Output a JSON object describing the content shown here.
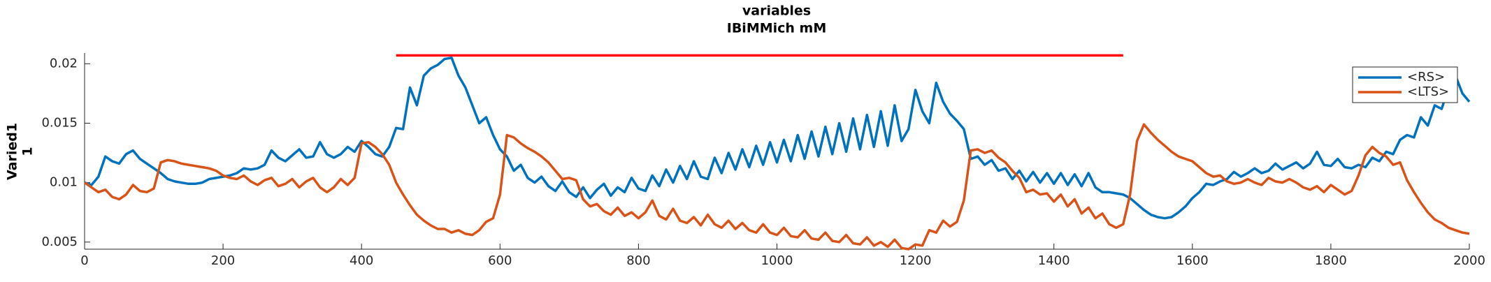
{
  "chart_data": {
    "type": "line",
    "title": "variables",
    "subtitle": "IBiMMich mM",
    "ylabel": [
      "Varied1",
      "1"
    ],
    "xlim": [
      0,
      2000
    ],
    "xticks": [
      0,
      200,
      400,
      600,
      800,
      1000,
      1200,
      1400,
      1600,
      1800,
      2000
    ],
    "ylim": [
      0.0044,
      0.0209
    ],
    "yticks": [
      0.005,
      0.01,
      0.015,
      0.02
    ],
    "grid": false,
    "legend_position": "upper right",
    "red_line": {
      "x": [
        450,
        1500
      ],
      "y": 0.0207,
      "color": "#ff0000"
    },
    "x": [
      0,
      10,
      20,
      30,
      40,
      50,
      60,
      70,
      80,
      90,
      100,
      110,
      120,
      130,
      140,
      150,
      160,
      170,
      180,
      190,
      200,
      210,
      220,
      230,
      240,
      250,
      260,
      270,
      280,
      290,
      300,
      310,
      320,
      330,
      340,
      350,
      360,
      370,
      380,
      390,
      400,
      410,
      420,
      430,
      440,
      450,
      460,
      470,
      480,
      490,
      500,
      510,
      520,
      530,
      540,
      550,
      560,
      570,
      580,
      590,
      600,
      610,
      620,
      630,
      640,
      650,
      660,
      670,
      680,
      690,
      700,
      710,
      720,
      730,
      740,
      750,
      760,
      770,
      780,
      790,
      800,
      810,
      820,
      830,
      840,
      850,
      860,
      870,
      880,
      890,
      900,
      910,
      920,
      930,
      940,
      950,
      960,
      970,
      980,
      990,
      1000,
      1010,
      1020,
      1030,
      1040,
      1050,
      1060,
      1070,
      1080,
      1090,
      1100,
      1110,
      1120,
      1130,
      1140,
      1150,
      1160,
      1170,
      1180,
      1190,
      1200,
      1210,
      1220,
      1230,
      1240,
      1250,
      1260,
      1270,
      1280,
      1290,
      1300,
      1310,
      1320,
      1330,
      1340,
      1350,
      1360,
      1370,
      1380,
      1390,
      1400,
      1410,
      1420,
      1430,
      1440,
      1450,
      1460,
      1470,
      1480,
      1490,
      1500,
      1510,
      1520,
      1530,
      1540,
      1550,
      1560,
      1570,
      1580,
      1590,
      1600,
      1610,
      1620,
      1630,
      1640,
      1650,
      1660,
      1670,
      1680,
      1690,
      1700,
      1710,
      1720,
      1730,
      1740,
      1750,
      1760,
      1770,
      1780,
      1790,
      1800,
      1810,
      1820,
      1830,
      1840,
      1850,
      1860,
      1870,
      1880,
      1890,
      1900,
      1910,
      1920,
      1930,
      1940,
      1950,
      1960,
      1970,
      1980,
      1990,
      2000
    ],
    "series": [
      {
        "name": "<RS>",
        "color": "#0072bd",
        "values": [
          0.01,
          0.0098,
          0.0105,
          0.0122,
          0.0118,
          0.0116,
          0.0124,
          0.0127,
          0.012,
          0.0116,
          0.0112,
          0.0108,
          0.0103,
          0.0101,
          0.01,
          0.0099,
          0.0099,
          0.01,
          0.0103,
          0.0104,
          0.0105,
          0.0106,
          0.0108,
          0.0112,
          0.0111,
          0.0112,
          0.0115,
          0.0127,
          0.0121,
          0.0118,
          0.0123,
          0.0128,
          0.0121,
          0.0122,
          0.0134,
          0.0124,
          0.0121,
          0.0124,
          0.013,
          0.0126,
          0.0135,
          0.013,
          0.0124,
          0.0122,
          0.013,
          0.0146,
          0.0145,
          0.018,
          0.0165,
          0.019,
          0.0196,
          0.0199,
          0.0204,
          0.0205,
          0.019,
          0.018,
          0.0165,
          0.015,
          0.0155,
          0.014,
          0.0128,
          0.0122,
          0.011,
          0.0115,
          0.0104,
          0.01,
          0.0105,
          0.0097,
          0.0093,
          0.0101,
          0.0092,
          0.0088,
          0.0096,
          0.0087,
          0.0094,
          0.0099,
          0.0089,
          0.0096,
          0.0092,
          0.0104,
          0.0095,
          0.0093,
          0.0106,
          0.0097,
          0.0111,
          0.01,
          0.0114,
          0.0103,
          0.0118,
          0.0105,
          0.0103,
          0.0121,
          0.0108,
          0.0125,
          0.0111,
          0.0128,
          0.0113,
          0.0131,
          0.0115,
          0.0134,
          0.0117,
          0.0136,
          0.0118,
          0.014,
          0.012,
          0.0143,
          0.0122,
          0.0147,
          0.0124,
          0.015,
          0.0126,
          0.0154,
          0.0128,
          0.0157,
          0.013,
          0.016,
          0.0131,
          0.0165,
          0.0135,
          0.0145,
          0.0178,
          0.016,
          0.015,
          0.0184,
          0.0168,
          0.0158,
          0.0152,
          0.0145,
          0.012,
          0.0122,
          0.0115,
          0.0119,
          0.011,
          0.0112,
          0.0103,
          0.011,
          0.0101,
          0.0109,
          0.01,
          0.0108,
          0.0099,
          0.0108,
          0.0098,
          0.0107,
          0.0097,
          0.0108,
          0.0096,
          0.0092,
          0.0092,
          0.0091,
          0.009,
          0.0087,
          0.0082,
          0.0077,
          0.0073,
          0.0071,
          0.007,
          0.0071,
          0.0075,
          0.008,
          0.0087,
          0.0092,
          0.0099,
          0.0098,
          0.0101,
          0.0103,
          0.0109,
          0.0105,
          0.0108,
          0.0112,
          0.0108,
          0.011,
          0.0116,
          0.0111,
          0.0114,
          0.0117,
          0.0112,
          0.0116,
          0.0126,
          0.0115,
          0.0114,
          0.012,
          0.0113,
          0.0112,
          0.0115,
          0.0113,
          0.0121,
          0.0118,
          0.0126,
          0.0124,
          0.0136,
          0.014,
          0.0138,
          0.0155,
          0.0148,
          0.0165,
          0.0162,
          0.018,
          0.019,
          0.0175,
          0.0168
        ]
      },
      {
        "name": "<LTS>",
        "color": "#d95319",
        "values": [
          0.01,
          0.0096,
          0.0092,
          0.0094,
          0.0088,
          0.0086,
          0.009,
          0.0098,
          0.0093,
          0.0092,
          0.0095,
          0.0117,
          0.0119,
          0.0118,
          0.0116,
          0.0115,
          0.0114,
          0.0113,
          0.0112,
          0.011,
          0.0106,
          0.0104,
          0.0103,
          0.0106,
          0.0101,
          0.0098,
          0.0102,
          0.0104,
          0.0097,
          0.0099,
          0.0103,
          0.0096,
          0.0101,
          0.0104,
          0.0096,
          0.0092,
          0.0096,
          0.0103,
          0.0098,
          0.0104,
          0.0133,
          0.0134,
          0.013,
          0.0124,
          0.0115,
          0.01,
          0.009,
          0.0081,
          0.0073,
          0.0068,
          0.0064,
          0.0061,
          0.0061,
          0.0058,
          0.006,
          0.0057,
          0.0056,
          0.006,
          0.0067,
          0.007,
          0.009,
          0.014,
          0.0138,
          0.0133,
          0.0129,
          0.0126,
          0.0122,
          0.0117,
          0.011,
          0.0103,
          0.0104,
          0.0102,
          0.0086,
          0.008,
          0.0082,
          0.0076,
          0.0073,
          0.0079,
          0.0072,
          0.0075,
          0.007,
          0.0075,
          0.0085,
          0.0072,
          0.0069,
          0.0078,
          0.0068,
          0.0066,
          0.0071,
          0.0064,
          0.0073,
          0.0065,
          0.0062,
          0.0068,
          0.0061,
          0.0066,
          0.006,
          0.0058,
          0.0065,
          0.0058,
          0.0056,
          0.0062,
          0.0055,
          0.0054,
          0.006,
          0.0053,
          0.0052,
          0.0058,
          0.0051,
          0.005,
          0.0056,
          0.0049,
          0.0048,
          0.0054,
          0.0047,
          0.005,
          0.0046,
          0.0052,
          0.0045,
          0.0044,
          0.0048,
          0.0047,
          0.006,
          0.0058,
          0.0068,
          0.0063,
          0.0067,
          0.0085,
          0.0127,
          0.0128,
          0.0125,
          0.0127,
          0.0121,
          0.0117,
          0.011,
          0.0104,
          0.0092,
          0.0094,
          0.009,
          0.0091,
          0.0084,
          0.009,
          0.008,
          0.0086,
          0.0074,
          0.0079,
          0.007,
          0.0074,
          0.0065,
          0.0062,
          0.0065,
          0.009,
          0.0135,
          0.0149,
          0.0142,
          0.0136,
          0.0131,
          0.0126,
          0.0122,
          0.012,
          0.0118,
          0.0113,
          0.0108,
          0.0105,
          0.0106,
          0.0101,
          0.0099,
          0.01,
          0.0103,
          0.01,
          0.0098,
          0.0104,
          0.0101,
          0.01,
          0.0103,
          0.01,
          0.0096,
          0.0094,
          0.0097,
          0.0092,
          0.0098,
          0.0094,
          0.009,
          0.0093,
          0.0106,
          0.0123,
          0.013,
          0.0125,
          0.0122,
          0.0115,
          0.0117,
          0.0102,
          0.0092,
          0.0083,
          0.0075,
          0.0069,
          0.0066,
          0.0062,
          0.006,
          0.0058,
          0.0057
        ]
      }
    ]
  }
}
